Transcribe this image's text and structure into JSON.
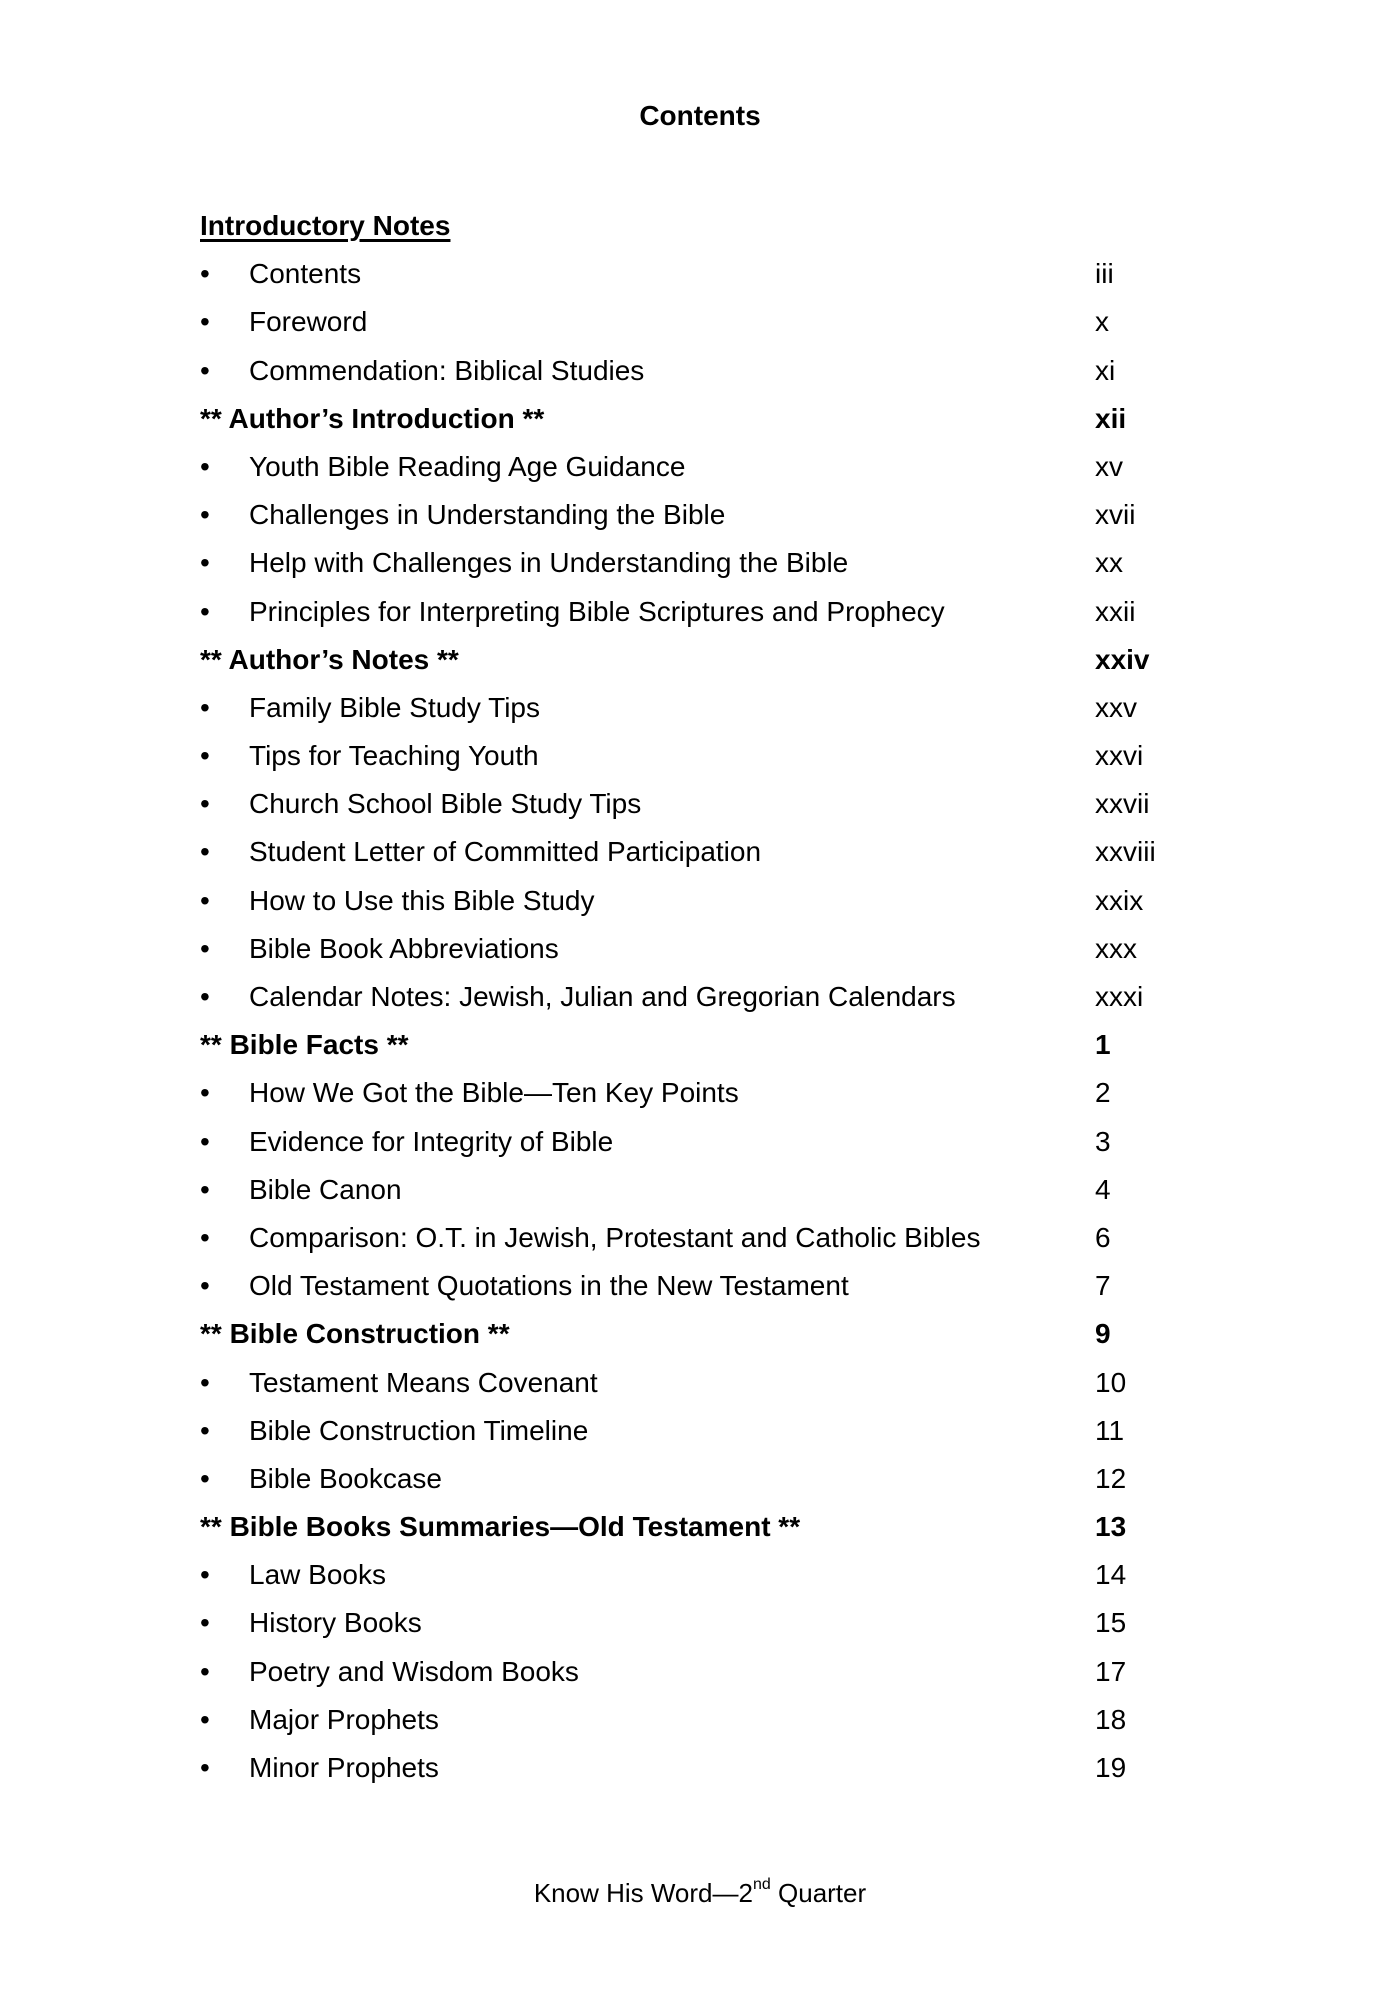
{
  "title": "Contents",
  "section_heading": "Introductory Notes",
  "entries": [
    {
      "type": "item",
      "label": "Contents",
      "page": "iii"
    },
    {
      "type": "item",
      "label": "Foreword",
      "page": "x"
    },
    {
      "type": "item",
      "label": "Commendation: Biblical Studies",
      "page": "xi"
    },
    {
      "type": "heading",
      "label": "** Author’s Introduction **",
      "page": "xii"
    },
    {
      "type": "item",
      "label": "Youth Bible Reading Age Guidance",
      "page": "xv"
    },
    {
      "type": "item",
      "label": "Challenges in Understanding the Bible",
      "page": "xvii"
    },
    {
      "type": "item",
      "label": "Help with Challenges in Understanding the Bible",
      "page": "xx"
    },
    {
      "type": "item",
      "label": "Principles for Interpreting Bible Scriptures and Prophecy",
      "page": "xxii"
    },
    {
      "type": "heading",
      "label": "** Author’s Notes **",
      "page": "xxiv"
    },
    {
      "type": "item",
      "label": "Family Bible Study Tips",
      "page": "xxv"
    },
    {
      "type": "item",
      "label": "Tips for Teaching Youth",
      "page": "xxvi"
    },
    {
      "type": "item",
      "label": "Church School Bible Study Tips",
      "page": "xxvii"
    },
    {
      "type": "item",
      "label": "Student Letter of Committed Participation",
      "page": "xxviii"
    },
    {
      "type": "item",
      "label": "How to Use this Bible Study",
      "page": "xxix"
    },
    {
      "type": "item",
      "label": "Bible Book Abbreviations",
      "page": "xxx"
    },
    {
      "type": "item",
      "label": "Calendar Notes: Jewish, Julian and Gregorian Calendars",
      "page": "xxxi"
    },
    {
      "type": "heading",
      "label": "** Bible Facts **",
      "page": "1"
    },
    {
      "type": "item",
      "label": "How We Got the Bible—Ten Key Points",
      "page": "2"
    },
    {
      "type": "item",
      "label": "Evidence for Integrity of Bible",
      "page": "3"
    },
    {
      "type": "item",
      "label": "Bible Canon",
      "page": "4"
    },
    {
      "type": "item",
      "label": "Comparison: O.T. in Jewish, Protestant and Catholic Bibles",
      "page": "6"
    },
    {
      "type": "item",
      "label": "Old Testament Quotations in the New Testament",
      "page": "7"
    },
    {
      "type": "heading",
      "label": "** Bible Construction **",
      "page": "9"
    },
    {
      "type": "item",
      "label": "Testament Means Covenant",
      "page": "10"
    },
    {
      "type": "item",
      "label": "Bible Construction Timeline",
      "page": "11"
    },
    {
      "type": "item",
      "label": "Bible Bookcase",
      "page": "12"
    },
    {
      "type": "heading",
      "label": "** Bible Books Summaries—Old Testament **",
      "page": "13"
    },
    {
      "type": "item",
      "label": "Law Books",
      "page": "14"
    },
    {
      "type": "item",
      "label": "History Books",
      "page": "15"
    },
    {
      "type": "item",
      "label": "Poetry and Wisdom Books",
      "page": "17"
    },
    {
      "type": "item",
      "label": "Major Prophets",
      "page": "18"
    },
    {
      "type": "item",
      "label": "Minor Prophets",
      "page": "19"
    }
  ],
  "bullet": "•",
  "footer": {
    "text": "Know His Word—2",
    "superscript": "nd",
    "suffix": " Quarter"
  }
}
